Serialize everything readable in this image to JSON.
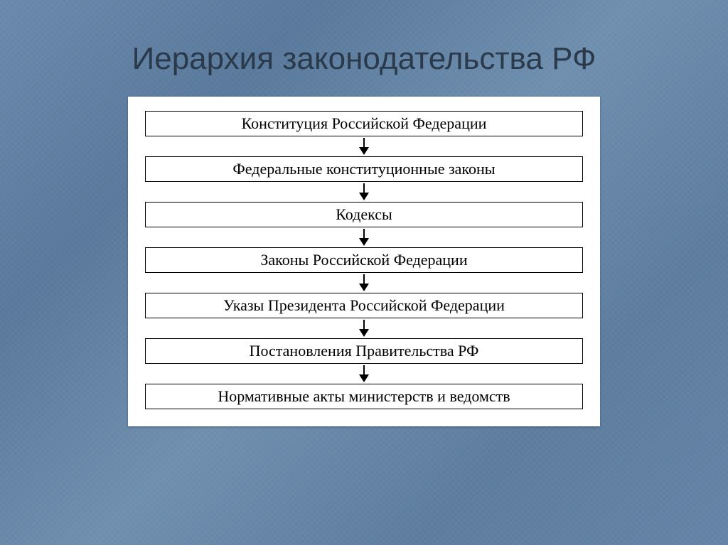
{
  "title": "Иерархия законодательства РФ",
  "diagram": {
    "type": "flowchart",
    "direction": "vertical",
    "background_color": "#ffffff",
    "page_background_color": "#6b8aad",
    "title_color": "#2a3a4a",
    "title_fontsize": 44,
    "box_border_color": "#000000",
    "box_border_width": 1,
    "box_background_color": "#ffffff",
    "box_text_color": "#000000",
    "box_font_family": "Times New Roman, serif",
    "box_fontsize": 22,
    "arrow_color": "#000000",
    "nodes": [
      {
        "label": "Конституция Российской Федерации"
      },
      {
        "label": "Федеральные конституционные законы"
      },
      {
        "label": "Кодексы"
      },
      {
        "label": "Законы Российской Федерации"
      },
      {
        "label": "Указы Президента Российской Федерации"
      },
      {
        "label": "Постановления Правительства РФ"
      },
      {
        "label": "Нормативные акты министерств и ведомств"
      }
    ]
  }
}
